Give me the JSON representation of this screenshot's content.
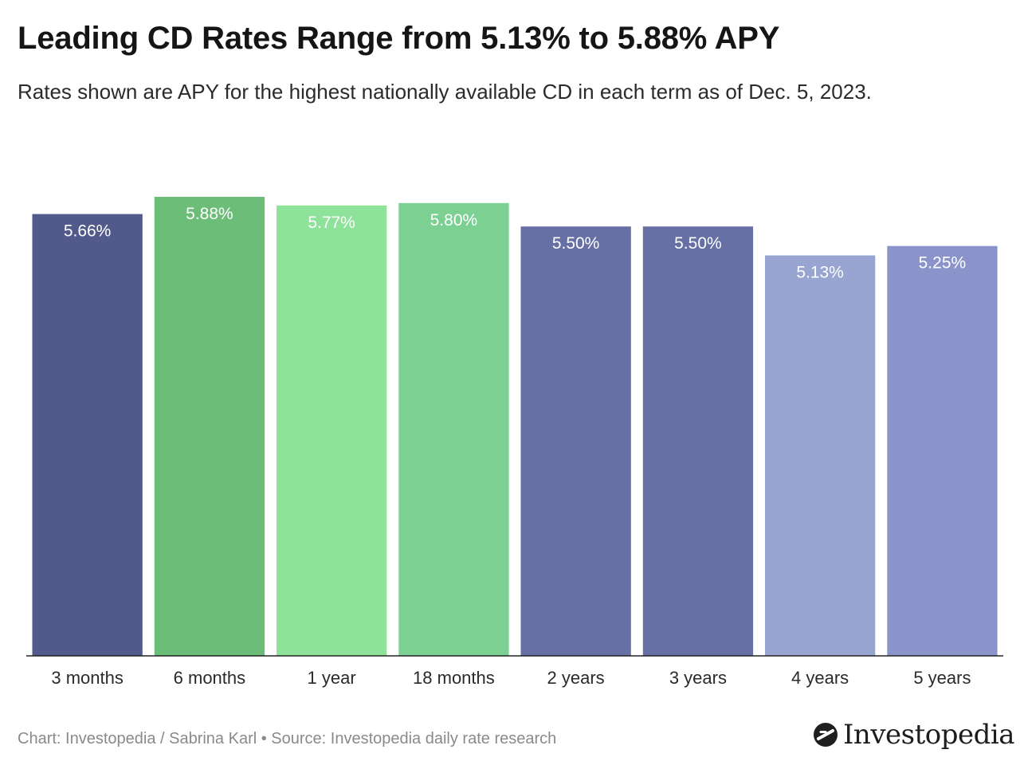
{
  "header": {
    "title": "Leading CD Rates Range from 5.13% to 5.88% APY",
    "subtitle": "Rates shown are APY for the highest nationally available CD in each term as of Dec. 5, 2023."
  },
  "footer": {
    "credit": "Chart: Investopedia / Sabrina Karl • Source: Investopedia daily rate research"
  },
  "brand": {
    "name": "Investopedia",
    "icon": "investopedia-logo-icon"
  },
  "chart_data": {
    "type": "bar",
    "title": "Leading CD Rates Range from 5.13% to 5.88% APY",
    "subtitle": "Rates shown are APY for the highest nationally available CD in each term as of Dec. 5, 2023.",
    "xlabel": "",
    "ylabel": "",
    "ylim": [
      0,
      5.88
    ],
    "grid": false,
    "legend": "none",
    "categories": [
      "3 months",
      "6 months",
      "1 year",
      "18 months",
      "2 years",
      "3 years",
      "4 years",
      "5 years"
    ],
    "values": [
      5.66,
      5.88,
      5.77,
      5.8,
      5.5,
      5.5,
      5.13,
      5.25
    ],
    "value_labels": [
      "5.66%",
      "5.88%",
      "5.77%",
      "5.80%",
      "5.50%",
      "5.50%",
      "5.13%",
      "5.25%"
    ],
    "colors": [
      "#525a8c",
      "#6bbd78",
      "#8fe299",
      "#7bd092",
      "#6670a4",
      "#6670a4",
      "#97a5d0",
      "#8b94ca"
    ]
  }
}
